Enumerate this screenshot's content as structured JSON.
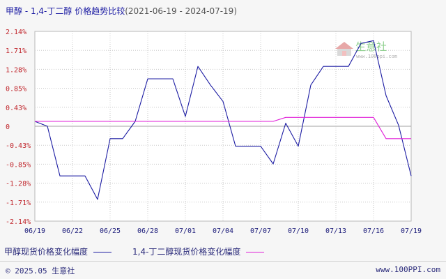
{
  "title": {
    "main": "甲醇 - 1,4-丁二醇 价格趋势比较",
    "range": "(2021-06-19 - 2024-07-19)"
  },
  "watermark": {
    "brand": "生意社",
    "url": "www.100ppi.com"
  },
  "legend": {
    "series_a": "甲醇现货价格变化幅度",
    "series_b": "1,4-丁二醇现货价格变化幅度"
  },
  "footer": {
    "copyright": "© 2025.05 生意社",
    "site": "www.100PPI.com"
  },
  "colors": {
    "series_a": "#1c1ca3",
    "series_b": "#e01ed8",
    "zero_line": "#a0a0a0",
    "grid": "#c8c8c8"
  },
  "chart_data": {
    "type": "line",
    "title": "甲醇 - 1,4-丁二醇 价格趋势比较",
    "x_ticks": [
      "06/19",
      "06/22",
      "06/25",
      "06/28",
      "07/01",
      "07/04",
      "07/07",
      "07/10",
      "07/13",
      "07/16",
      "07/19"
    ],
    "y_ticks": [
      "2.14%",
      "1.71%",
      "1.28%",
      "0.85%",
      "0.43%",
      "0",
      "-0.43%",
      "-0.85%",
      "-1.28%",
      "-1.71%",
      "-2.14%"
    ],
    "ylim": [
      -2.14,
      2.14
    ],
    "x_range": [
      0,
      30
    ],
    "grid": true,
    "series": [
      {
        "name": "甲醇现货价格变化幅度",
        "color": "#1c1ca3",
        "x": [
          0,
          1,
          2,
          3,
          4,
          5,
          6,
          7,
          8,
          9,
          10,
          11,
          12,
          13,
          14,
          15,
          16,
          17,
          18,
          19,
          20,
          21,
          22,
          23,
          24,
          25,
          26,
          27,
          28,
          29,
          30
        ],
        "values": [
          0.11,
          0.0,
          -1.12,
          -1.12,
          -1.12,
          -1.65,
          -0.28,
          -0.28,
          0.11,
          1.07,
          1.07,
          1.07,
          0.22,
          1.35,
          0.93,
          0.56,
          -0.45,
          -0.45,
          -0.45,
          -0.85,
          0.07,
          -0.45,
          0.93,
          1.35,
          1.35,
          1.35,
          1.87,
          1.93,
          0.69,
          0.02,
          -1.12
        ]
      },
      {
        "name": "1,4-丁二醇现货价格变化幅度",
        "color": "#e01ed8",
        "x": [
          0,
          1,
          2,
          3,
          4,
          5,
          6,
          7,
          8,
          9,
          10,
          11,
          12,
          13,
          14,
          15,
          16,
          17,
          18,
          19,
          20,
          21,
          22,
          23,
          24,
          25,
          26,
          27,
          28,
          29,
          30
        ],
        "values": [
          0.11,
          0.11,
          0.11,
          0.11,
          0.11,
          0.11,
          0.11,
          0.11,
          0.11,
          0.11,
          0.11,
          0.11,
          0.11,
          0.11,
          0.11,
          0.11,
          0.11,
          0.11,
          0.11,
          0.11,
          0.2,
          0.2,
          0.2,
          0.2,
          0.2,
          0.2,
          0.2,
          0.2,
          -0.28,
          -0.28,
          -0.28
        ]
      }
    ]
  }
}
